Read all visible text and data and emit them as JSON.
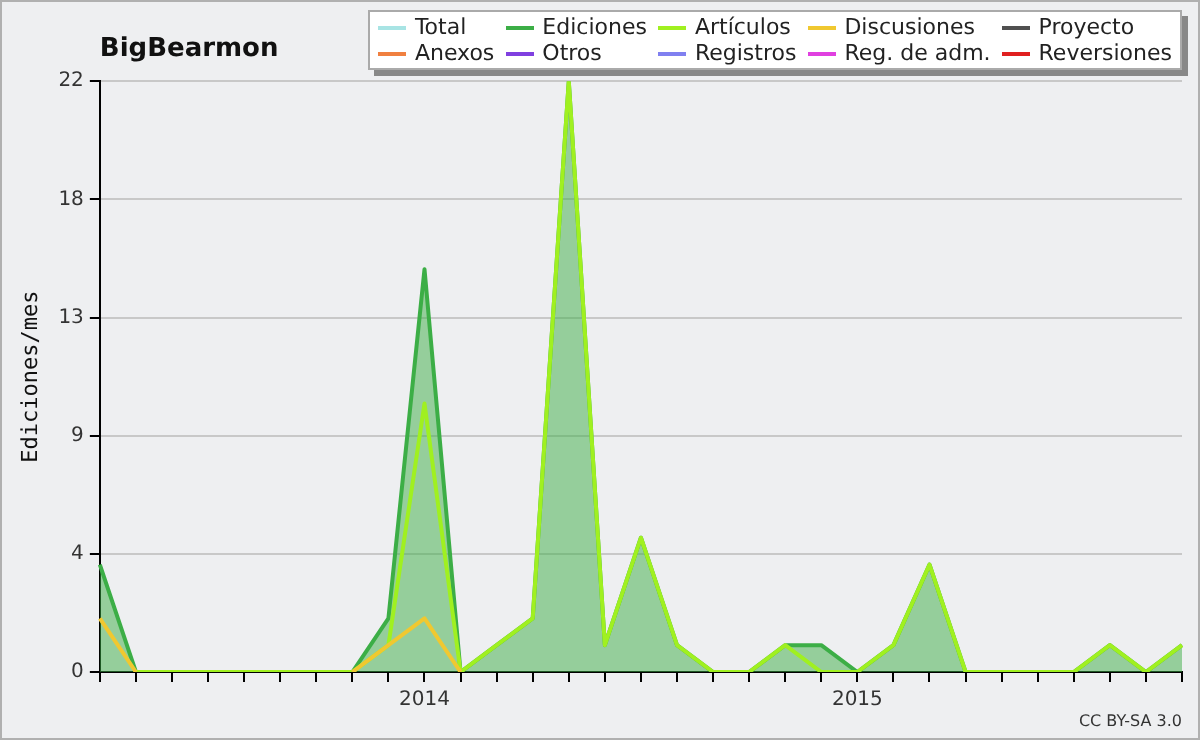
{
  "chart_data": {
    "type": "line",
    "title": "BigBearmon",
    "ylabel": "Ediciones/mes",
    "categories": [
      null,
      null,
      null,
      null,
      null,
      null,
      null,
      null,
      null,
      "2014",
      null,
      null,
      null,
      null,
      null,
      null,
      null,
      null,
      null,
      null,
      null,
      "2015",
      null,
      null,
      null,
      null,
      null,
      null,
      null,
      null,
      null
    ],
    "ylim": [
      0,
      22
    ],
    "yticks": [
      0,
      {
        "value": 4.4,
        "label": "4"
      },
      {
        "value": 8.8,
        "label": "9"
      },
      {
        "value": 13.2,
        "label": "13"
      },
      {
        "value": 17.6,
        "label": "18"
      },
      22
    ],
    "grid": "y",
    "legend": "top right",
    "marker": "none",
    "annotations": [
      "CC BY-SA 3.0"
    ],
    "series": [
      {
        "name": "Total",
        "color": "#a8e4e4",
        "values": [
          null,
          null,
          null,
          null,
          null,
          null,
          null,
          null,
          null,
          null,
          null,
          null,
          null,
          null,
          null,
          null,
          null,
          null,
          null,
          null,
          null,
          null,
          null,
          null,
          null,
          null,
          null,
          null,
          null,
          null,
          null
        ]
      },
      {
        "name": "Anexos",
        "color": "#f08040",
        "values": [
          null,
          null,
          null,
          null,
          null,
          null,
          null,
          null,
          null,
          null,
          null,
          null,
          null,
          null,
          null,
          null,
          null,
          null,
          null,
          null,
          null,
          null,
          null,
          null,
          null,
          null,
          null,
          null,
          null,
          null,
          null
        ]
      },
      {
        "name": "Ediciones",
        "type": "area",
        "color": "#3cae46",
        "values": [
          4,
          0,
          0,
          0,
          0,
          0,
          0,
          0,
          2,
          15,
          0,
          1,
          2,
          22,
          1,
          5,
          1,
          0,
          0,
          1,
          1,
          0,
          1,
          4,
          0,
          0,
          0,
          0,
          1,
          0,
          1
        ]
      },
      {
        "name": "Otros",
        "color": "#8040e0",
        "values": [
          null,
          null,
          null,
          null,
          null,
          null,
          null,
          null,
          null,
          null,
          null,
          null,
          null,
          null,
          null,
          null,
          null,
          null,
          null,
          null,
          null,
          null,
          null,
          null,
          null,
          null,
          null,
          null,
          null,
          null,
          null
        ]
      },
      {
        "name": "Artículos",
        "color": "#a0f020",
        "values": [
          null,
          0,
          0,
          0,
          0,
          0,
          0,
          0,
          1,
          10,
          0,
          1,
          2,
          22,
          1,
          5,
          1,
          0,
          0,
          1,
          0,
          0,
          1,
          4,
          0,
          0,
          0,
          0,
          1,
          0,
          1
        ]
      },
      {
        "name": "Registros",
        "color": "#8080f0",
        "values": [
          null,
          null,
          null,
          null,
          null,
          null,
          null,
          null,
          null,
          null,
          null,
          null,
          null,
          null,
          null,
          null,
          null,
          null,
          null,
          null,
          null,
          null,
          null,
          null,
          null,
          null,
          null,
          null,
          null,
          null,
          null
        ]
      },
      {
        "name": "Discusiones",
        "color": "#f0c830",
        "values": [
          2,
          0,
          null,
          null,
          null,
          null,
          null,
          0,
          1,
          2,
          0,
          null,
          null,
          null,
          null,
          null,
          null,
          null,
          null,
          null,
          null,
          null,
          null,
          null,
          null,
          null,
          null,
          null,
          null,
          null,
          null
        ]
      },
      {
        "name": "Reg. de adm.",
        "color": "#e040e0",
        "values": [
          null,
          null,
          null,
          null,
          null,
          null,
          null,
          null,
          null,
          null,
          null,
          null,
          null,
          null,
          null,
          null,
          null,
          null,
          null,
          null,
          null,
          null,
          null,
          null,
          null,
          null,
          null,
          null,
          null,
          null,
          null
        ]
      },
      {
        "name": "Proyecto",
        "color": "#505050",
        "values": [
          null,
          null,
          null,
          null,
          null,
          null,
          null,
          null,
          null,
          null,
          null,
          null,
          null,
          null,
          null,
          null,
          null,
          null,
          null,
          null,
          null,
          null,
          null,
          null,
          null,
          null,
          null,
          null,
          null,
          null,
          null
        ]
      },
      {
        "name": "Reversiones",
        "color": "#e02020",
        "values": [
          null,
          null,
          null,
          null,
          null,
          null,
          null,
          null,
          null,
          null,
          null,
          null,
          null,
          null,
          null,
          null,
          null,
          null,
          null,
          null,
          null,
          null,
          null,
          null,
          null,
          null,
          null,
          null,
          null,
          null,
          null
        ]
      }
    ]
  }
}
